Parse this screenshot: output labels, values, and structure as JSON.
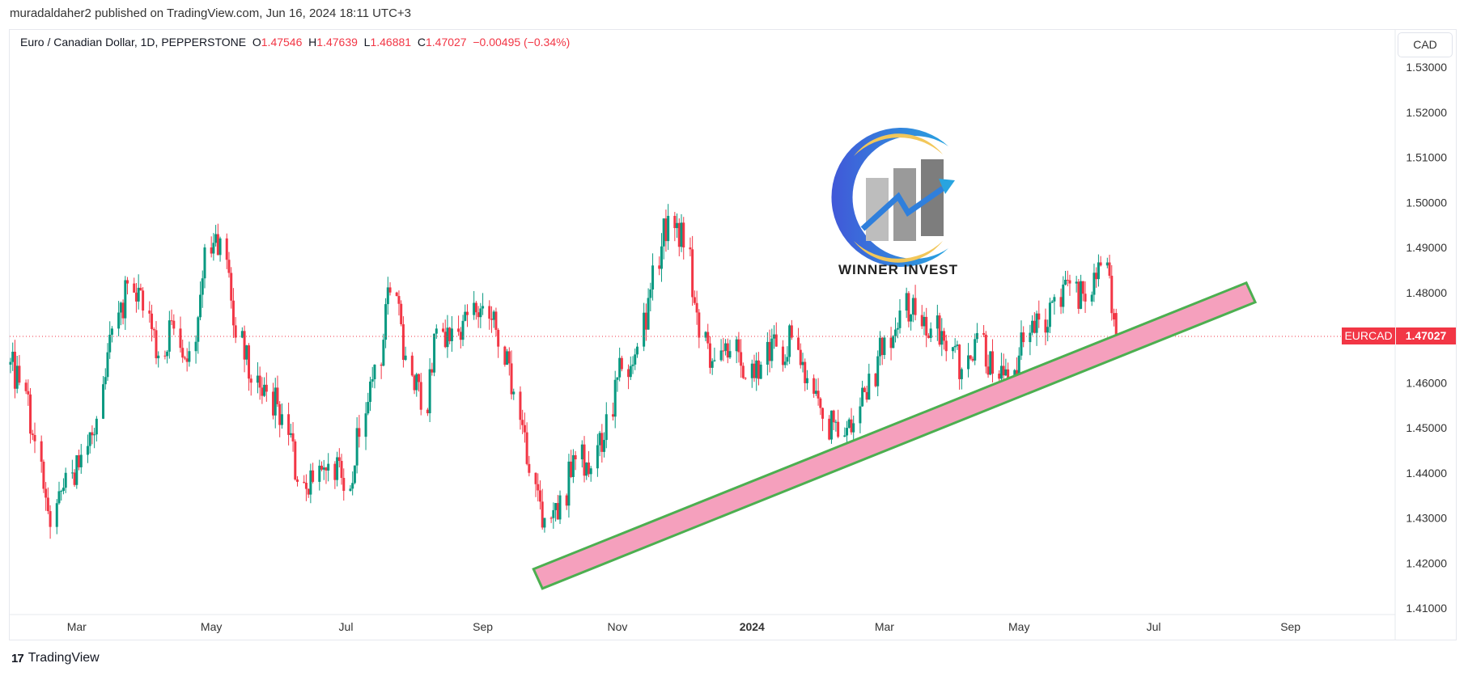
{
  "publish_line": "muradaldaher2 published on TradingView.com, Jun 16, 2024 18:11 UTC+3",
  "legend": {
    "symbol": "Euro / Canadian Dollar, 1D, PEPPERSTONE",
    "o_label": "O",
    "o": "1.47546",
    "h_label": "H",
    "h": "1.47639",
    "l_label": "L",
    "l": "1.46881",
    "c_label": "C",
    "c": "1.47027",
    "change": "−0.00495 (−0.34%)"
  },
  "currency_button": "CAD",
  "last_price_label": {
    "symbol": "EURCAD",
    "value": "1.47027"
  },
  "watermark_logo": {
    "text": "WINNER INVEST"
  },
  "footer": {
    "brand": "TradingView",
    "logo_icon": "tradingview-logo-icon"
  },
  "colors": {
    "up": "#089981",
    "down": "#f23645",
    "trend_fill": "#f5a0bd",
    "trend_border": "#4caf50"
  },
  "chart_data": {
    "type": "candlestick",
    "symbol": "EURCAD",
    "timeframe": "1D",
    "ylim": [
      1.405,
      1.535
    ],
    "y_ticks": [
      "1.53000",
      "1.52000",
      "1.51000",
      "1.50000",
      "1.49000",
      "1.48000",
      "1.46000",
      "1.45000",
      "1.44000",
      "1.43000",
      "1.42000",
      "1.41000"
    ],
    "x_ticks": [
      {
        "label": "Mar",
        "date": "2023-03-01"
      },
      {
        "label": "May",
        "date": "2023-05-01"
      },
      {
        "label": "Jul",
        "date": "2023-07-01"
      },
      {
        "label": "Sep",
        "date": "2023-09-01"
      },
      {
        "label": "Nov",
        "date": "2023-11-01"
      },
      {
        "label": "2024",
        "date": "2024-01-01",
        "bold": true
      },
      {
        "label": "Mar",
        "date": "2024-03-01"
      },
      {
        "label": "May",
        "date": "2024-05-01"
      },
      {
        "label": "Jul",
        "date": "2024-07-01"
      },
      {
        "label": "Sep",
        "date": "2024-09-01"
      }
    ],
    "weekly_closes": {
      "week_of": [
        "2023-01-30",
        "2023-02-06",
        "2023-02-13",
        "2023-02-20",
        "2023-02-27",
        "2023-03-06",
        "2023-03-13",
        "2023-03-20",
        "2023-03-27",
        "2023-04-03",
        "2023-04-10",
        "2023-04-17",
        "2023-04-24",
        "2023-05-01",
        "2023-05-08",
        "2023-05-15",
        "2023-05-22",
        "2023-05-29",
        "2023-06-05",
        "2023-06-12",
        "2023-06-19",
        "2023-06-26",
        "2023-07-03",
        "2023-07-10",
        "2023-07-17",
        "2023-07-24",
        "2023-07-31",
        "2023-08-07",
        "2023-08-14",
        "2023-08-21",
        "2023-08-28",
        "2023-09-04",
        "2023-09-11",
        "2023-09-18",
        "2023-09-25",
        "2023-10-02",
        "2023-10-09",
        "2023-10-16",
        "2023-10-23",
        "2023-10-30",
        "2023-11-06",
        "2023-11-13",
        "2023-11-20",
        "2023-11-27",
        "2023-12-04",
        "2023-12-11",
        "2023-12-18",
        "2023-12-25",
        "2024-01-01",
        "2024-01-08",
        "2024-01-15",
        "2024-01-22",
        "2024-01-29",
        "2024-02-05",
        "2024-02-12",
        "2024-02-19",
        "2024-02-26",
        "2024-03-04",
        "2024-03-11",
        "2024-03-18",
        "2024-03-25",
        "2024-04-01",
        "2024-04-08",
        "2024-04-15",
        "2024-04-22",
        "2024-04-29",
        "2024-05-06",
        "2024-05-13",
        "2024-05-20",
        "2024-05-27",
        "2024-06-03",
        "2024-06-10"
      ],
      "close": [
        1.46,
        1.447,
        1.428,
        1.44,
        1.444,
        1.452,
        1.472,
        1.482,
        1.476,
        1.466,
        1.472,
        1.467,
        1.49,
        1.492,
        1.47,
        1.46,
        1.458,
        1.453,
        1.438,
        1.438,
        1.442,
        1.436,
        1.448,
        1.464,
        1.48,
        1.466,
        1.454,
        1.472,
        1.472,
        1.475,
        1.477,
        1.468,
        1.458,
        1.44,
        1.43,
        1.435,
        1.443,
        1.441,
        1.453,
        1.463,
        1.468,
        1.486,
        1.497,
        1.49,
        1.47,
        1.465,
        1.467,
        1.461,
        1.464,
        1.468,
        1.47,
        1.461,
        1.452,
        1.448,
        1.451,
        1.462,
        1.47,
        1.476,
        1.475,
        1.472,
        1.467,
        1.463,
        1.471,
        1.462,
        1.46,
        1.469,
        1.474,
        1.479,
        1.482,
        1.478,
        1.486,
        1.47027
      ]
    },
    "last_candle": {
      "date": "2024-06-14",
      "open": 1.47546,
      "high": 1.47639,
      "low": 1.46881,
      "close": 1.47027
    },
    "last_price_line": 1.47027,
    "trend_channel": {
      "from": {
        "date": "2023-09-26",
        "price": 1.4165
      },
      "to": {
        "date": "2024-08-14",
        "price": 1.48
      },
      "style": "rising band"
    },
    "grid": false
  }
}
